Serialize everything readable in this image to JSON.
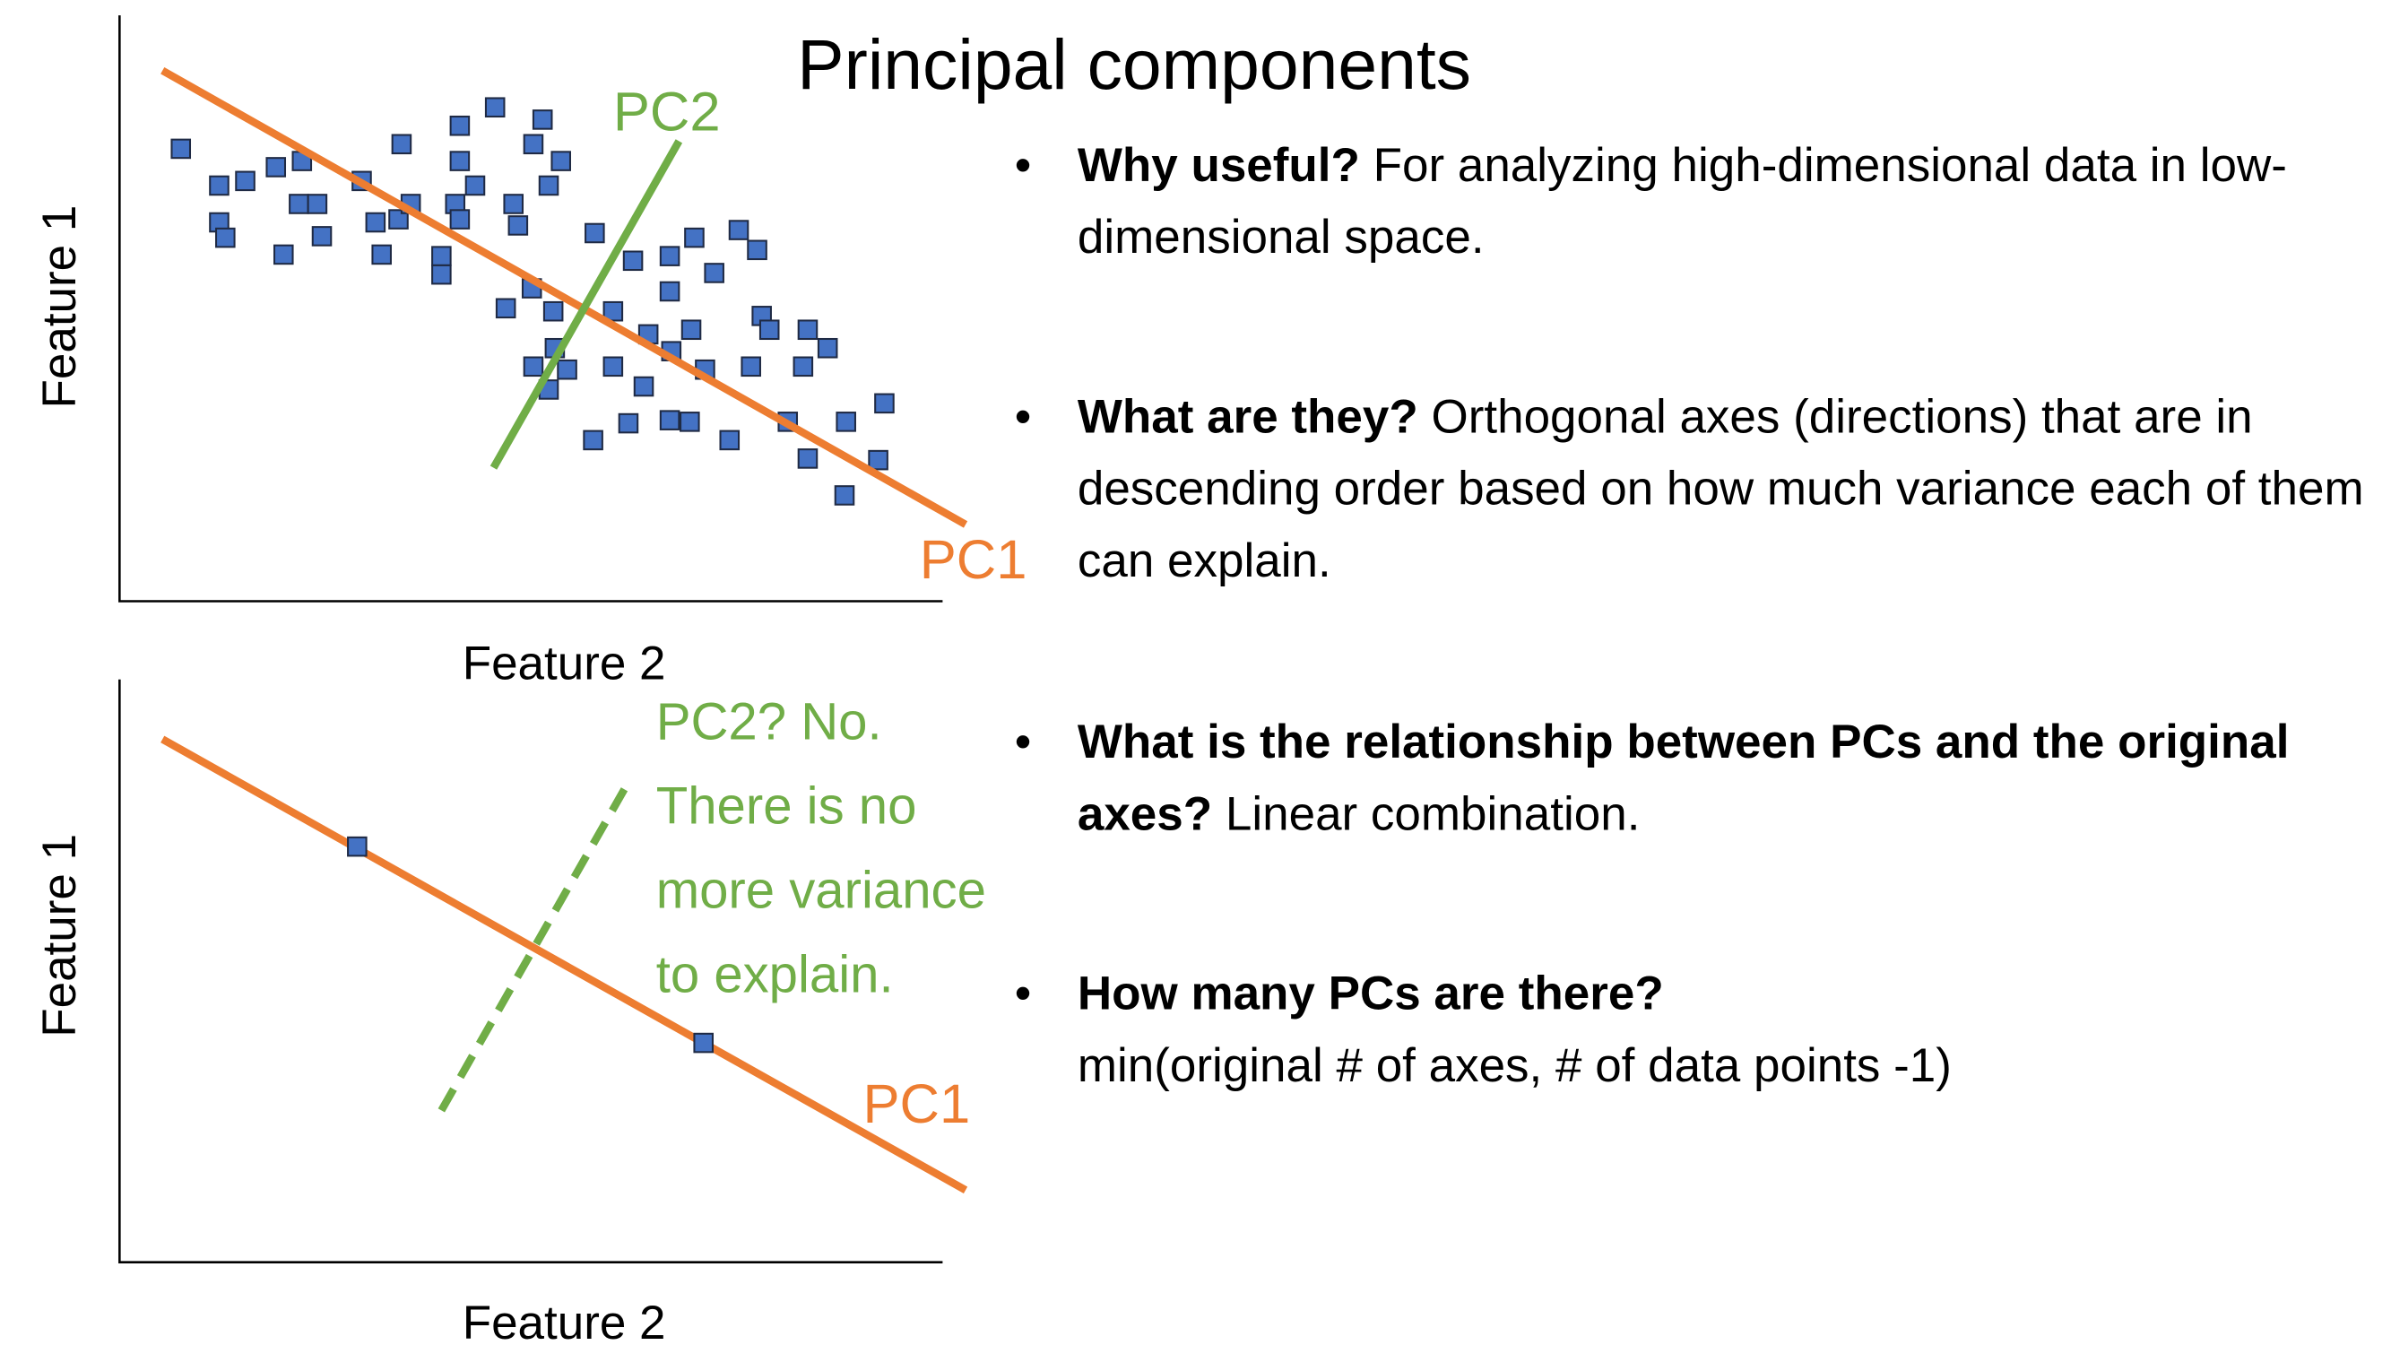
{
  "title": "Principal components",
  "diagram_top": {
    "y_label": "Feature 1",
    "x_label": "Feature 2",
    "pc1": "PC1",
    "pc2": "PC2"
  },
  "diagram_bottom": {
    "y_label": "Feature 1",
    "x_label": "Feature 2",
    "pc1": "PC1",
    "pc2_note": [
      "PC2? No.",
      "There is no",
      "more variance",
      "to explain."
    ]
  },
  "bullets": [
    {
      "bold": "Why useful?",
      "text": "For analyzing high-dimensional data in low-dimensional space."
    },
    {
      "bold": "What are they?",
      "text": "Orthogonal axes (directions) that are in descending order based on how much variance each of them can explain."
    },
    {
      "bold": "What is the relationship between PCs and the original axes?",
      "text": "Linear combination."
    },
    {
      "bold": "How many PCs are there?",
      "text": "min(original # of axes, # of data points -1)"
    }
  ]
}
